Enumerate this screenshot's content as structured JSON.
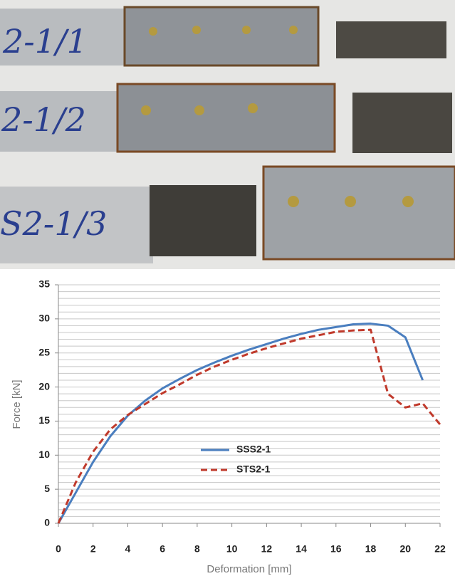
{
  "photo_labels": [
    "2-1/1",
    "2-1/2",
    "S2-1/3"
  ],
  "chart_data": {
    "type": "line",
    "x_label": "Deformation [mm]",
    "y_label": "Force [kN]",
    "x": [
      0,
      1,
      2,
      3,
      4,
      5,
      6,
      7,
      8,
      9,
      10,
      11,
      12,
      13,
      14,
      15,
      16,
      17,
      18,
      19,
      20,
      21,
      22
    ],
    "series": [
      {
        "name": "SSS2-1",
        "color": "#4a7ebf",
        "dashed": false,
        "values": [
          0,
          4.5,
          9,
          12.8,
          15.8,
          18,
          19.8,
          21.2,
          22.5,
          23.6,
          24.6,
          25.5,
          26.3,
          27.1,
          27.8,
          28.4,
          28.8,
          29.2,
          29.3,
          29.0,
          27.3,
          21.0,
          null
        ]
      },
      {
        "name": "STS2-1",
        "color": "#c0392b",
        "dashed": true,
        "values": [
          0,
          6,
          10.5,
          13.8,
          15.9,
          17.5,
          19.1,
          20.4,
          21.8,
          23,
          24,
          24.9,
          25.7,
          26.4,
          27.1,
          27.6,
          28.1,
          28.3,
          28.4,
          19,
          17,
          17.6,
          14.5
        ]
      }
    ],
    "xlim": [
      0,
      22
    ],
    "xticks": [
      0,
      2,
      4,
      6,
      8,
      10,
      12,
      14,
      16,
      18,
      20,
      22
    ],
    "ylim": [
      0,
      35
    ],
    "yticks": [
      0,
      5,
      10,
      15,
      20,
      25,
      30,
      35
    ],
    "grid": true,
    "grid_step": 1
  }
}
